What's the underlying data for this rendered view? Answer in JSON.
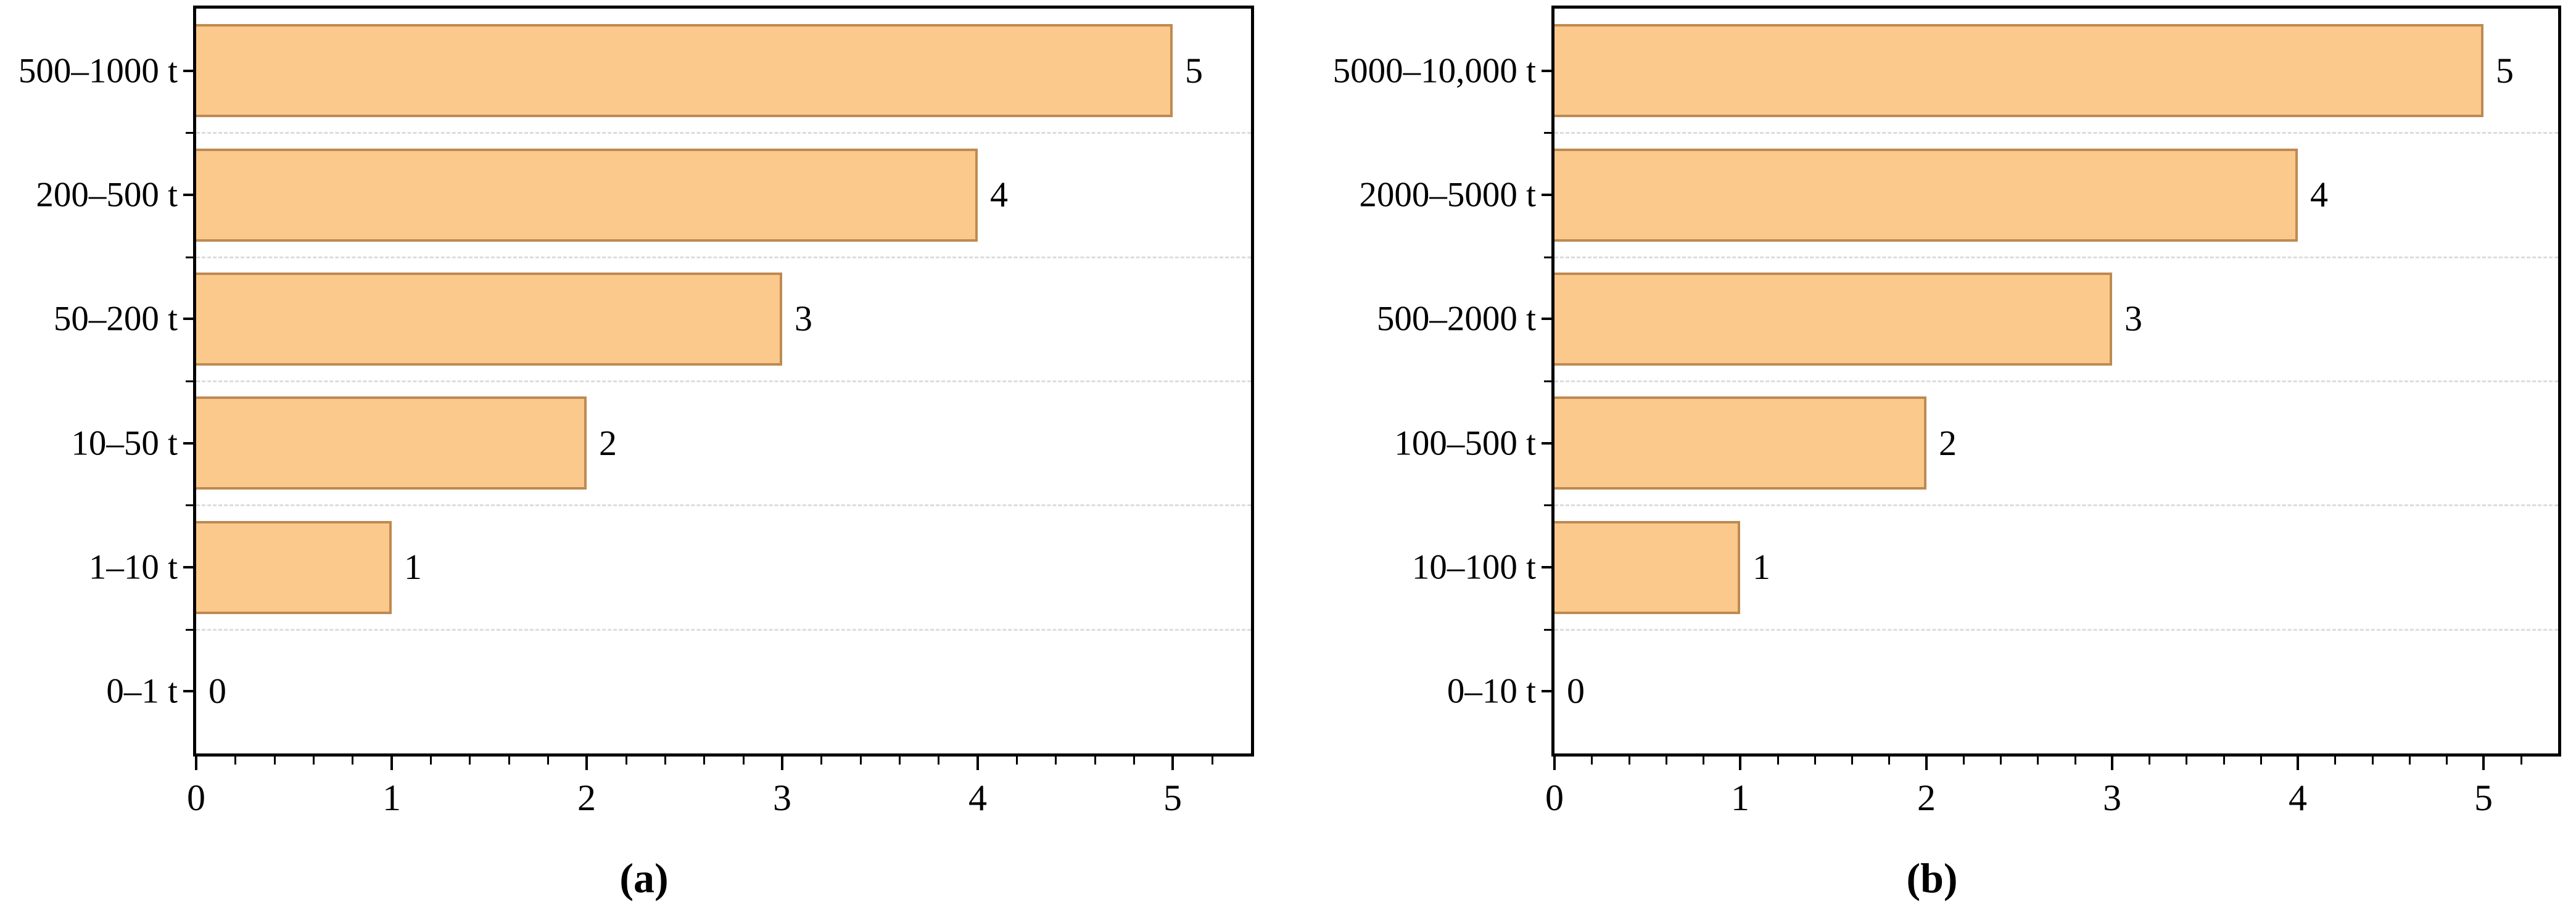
{
  "style": {
    "background": "#FFFFFF",
    "bar_fill": "#FCC98C",
    "bar_border": "#BE8A52",
    "grid_color": "#DCDCDC",
    "axis_color": "#000000",
    "text_color": "#000000"
  },
  "chart_data": [
    {
      "type": "bar",
      "orientation": "horizontal",
      "caption": "(a)",
      "title": "",
      "xlabel": "",
      "ylabel": "",
      "legend": "none",
      "categories_top_to_bottom": [
        "500–1000 t",
        "200–500 t",
        "50–200 t",
        "10–50 t",
        "1–10 t",
        "0–1 t"
      ],
      "values": [
        5,
        4,
        3,
        2,
        1,
        0
      ],
      "bar_labels": [
        "5",
        "4",
        "3",
        "2",
        "1",
        "0"
      ],
      "xlim": [
        0,
        5.4
      ],
      "x_major_ticks": [
        0,
        1,
        2,
        3,
        4,
        5
      ],
      "x_minor_tick_step": 0.2,
      "gridlines": "dashed horizontal lines at category boundaries"
    },
    {
      "type": "bar",
      "orientation": "horizontal",
      "caption": "(b)",
      "title": "",
      "xlabel": "",
      "ylabel": "",
      "legend": "none",
      "categories_top_to_bottom": [
        "5000–10,000 t",
        "2000–5000 t",
        "500–2000 t",
        "100–500 t",
        "10–100 t",
        "0–10 t"
      ],
      "values": [
        5,
        4,
        3,
        2,
        1,
        0
      ],
      "bar_labels": [
        "5",
        "4",
        "3",
        "2",
        "1",
        "0"
      ],
      "xlim": [
        0,
        5.4
      ],
      "x_major_ticks": [
        0,
        1,
        2,
        3,
        4,
        5
      ],
      "x_minor_tick_step": 0.2,
      "gridlines": "dashed horizontal lines at category boundaries"
    }
  ]
}
